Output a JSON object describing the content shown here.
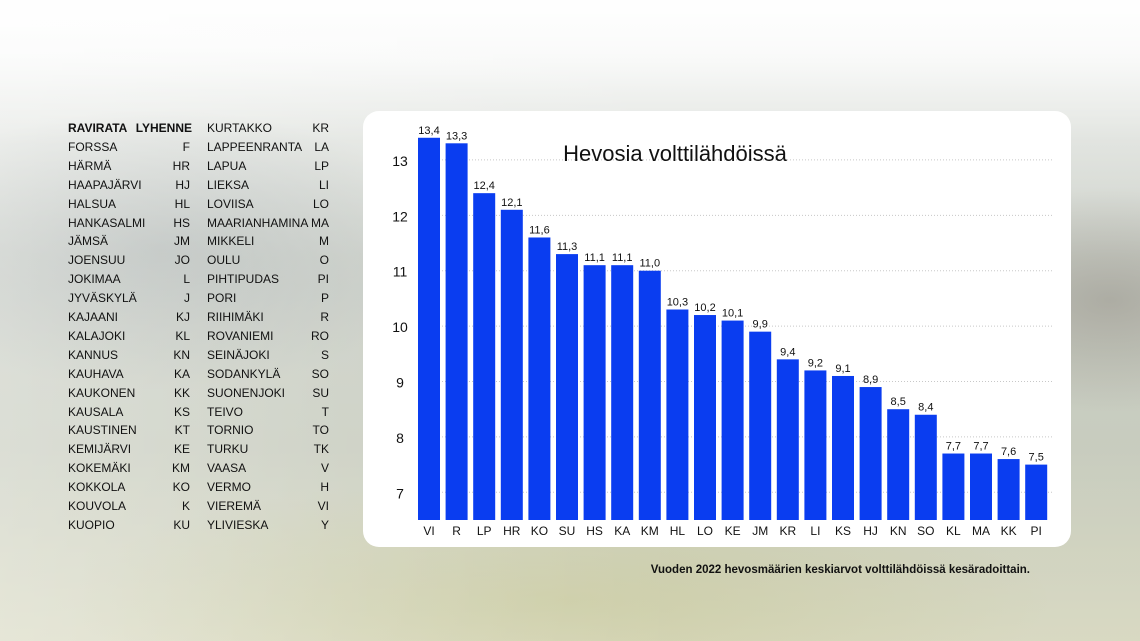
{
  "table": {
    "header": {
      "name": "RAVIRATA",
      "abbr": "LYHENNE"
    },
    "left": [
      {
        "name": "FORSSA",
        "abbr": "F"
      },
      {
        "name": "HÄRMÄ",
        "abbr": "HR"
      },
      {
        "name": "HAAPAJÄRVI",
        "abbr": "HJ"
      },
      {
        "name": "HALSUA",
        "abbr": "HL"
      },
      {
        "name": "HANKASALMI",
        "abbr": "HS"
      },
      {
        "name": "JÄMSÄ",
        "abbr": "JM"
      },
      {
        "name": "JOENSUU",
        "abbr": "JO"
      },
      {
        "name": "JOKIMAA",
        "abbr": "L"
      },
      {
        "name": "JYVÄSKYLÄ",
        "abbr": "J"
      },
      {
        "name": "KAJAANI",
        "abbr": "KJ"
      },
      {
        "name": "KALAJOKI",
        "abbr": "KL"
      },
      {
        "name": "KANNUS",
        "abbr": "KN"
      },
      {
        "name": "KAUHAVA",
        "abbr": "KA"
      },
      {
        "name": "KAUKONEN",
        "abbr": "KK"
      },
      {
        "name": "KAUSALA",
        "abbr": "KS"
      },
      {
        "name": "KAUSTINEN",
        "abbr": "KT"
      },
      {
        "name": "KEMIJÄRVI",
        "abbr": "KE"
      },
      {
        "name": "KOKEMÄKI",
        "abbr": "KM"
      },
      {
        "name": "KOKKOLA",
        "abbr": "KO"
      },
      {
        "name": "KOUVOLA",
        "abbr": "K"
      },
      {
        "name": "KUOPIO",
        "abbr": "KU"
      }
    ],
    "right": [
      {
        "name": "KURTAKKO",
        "abbr": "KR"
      },
      {
        "name": "LAPPEENRANTA",
        "abbr": "LA"
      },
      {
        "name": "LAPUA",
        "abbr": "LP"
      },
      {
        "name": "LIEKSA",
        "abbr": "LI"
      },
      {
        "name": "LOVIISA",
        "abbr": "LO"
      },
      {
        "name": "MAARIANHAMINA",
        "abbr": "MA"
      },
      {
        "name": "MIKKELI",
        "abbr": "M"
      },
      {
        "name": "OULU",
        "abbr": "O"
      },
      {
        "name": "PIHTIPUDAS",
        "abbr": "PI"
      },
      {
        "name": "PORI",
        "abbr": "P"
      },
      {
        "name": "RIIHIMÄKI",
        "abbr": "R"
      },
      {
        "name": "ROVANIEMI",
        "abbr": "RO"
      },
      {
        "name": "SEINÄJOKI",
        "abbr": "S"
      },
      {
        "name": "SODANKYLÄ",
        "abbr": "SO"
      },
      {
        "name": "SUONENJOKI",
        "abbr": "SU"
      },
      {
        "name": "TEIVO",
        "abbr": "T"
      },
      {
        "name": "TORNIO",
        "abbr": "TO"
      },
      {
        "name": "TURKU",
        "abbr": "TK"
      },
      {
        "name": "VAASA",
        "abbr": "V"
      },
      {
        "name": "VERMO",
        "abbr": "H"
      },
      {
        "name": "VIEREMÄ",
        "abbr": "VI"
      },
      {
        "name": "YLIVIESKA",
        "abbr": "Y"
      }
    ]
  },
  "chart_data": {
    "type": "bar",
    "title": "Hevosia volttilähdöissä",
    "categories": [
      "VI",
      "R",
      "LP",
      "HR",
      "KO",
      "SU",
      "HS",
      "KA",
      "KM",
      "HL",
      "LO",
      "KE",
      "JM",
      "KR",
      "LI",
      "KS",
      "HJ",
      "KN",
      "SO",
      "KL",
      "MA",
      "KK",
      "PI"
    ],
    "values": [
      13.4,
      13.3,
      12.4,
      12.1,
      11.6,
      11.3,
      11.1,
      11.1,
      11.0,
      10.3,
      10.2,
      10.1,
      9.9,
      9.4,
      9.2,
      9.1,
      8.9,
      8.5,
      8.4,
      7.7,
      7.7,
      7.6,
      7.5
    ],
    "value_labels": [
      "13,4",
      "13,3",
      "12,4",
      "12,1",
      "11,6",
      "11,3",
      "11,1",
      "11,1",
      "11,0",
      "10,3",
      "10,2",
      "10,1",
      "9,9",
      "9,4",
      "9,2",
      "9,1",
      "8,9",
      "8,5",
      "8,4",
      "7,7",
      "7,7",
      "7,6",
      "7,5"
    ],
    "y_ticks": [
      7,
      8,
      9,
      10,
      11,
      12,
      13
    ],
    "ylim": [
      6.5,
      13.45
    ],
    "grid": true,
    "bar_color": "#0a3df0",
    "xlabel": "",
    "ylabel": ""
  },
  "caption": "Vuoden 2022 hevosmäärien keskiarvot volttilähdöissä kesäradoittain."
}
